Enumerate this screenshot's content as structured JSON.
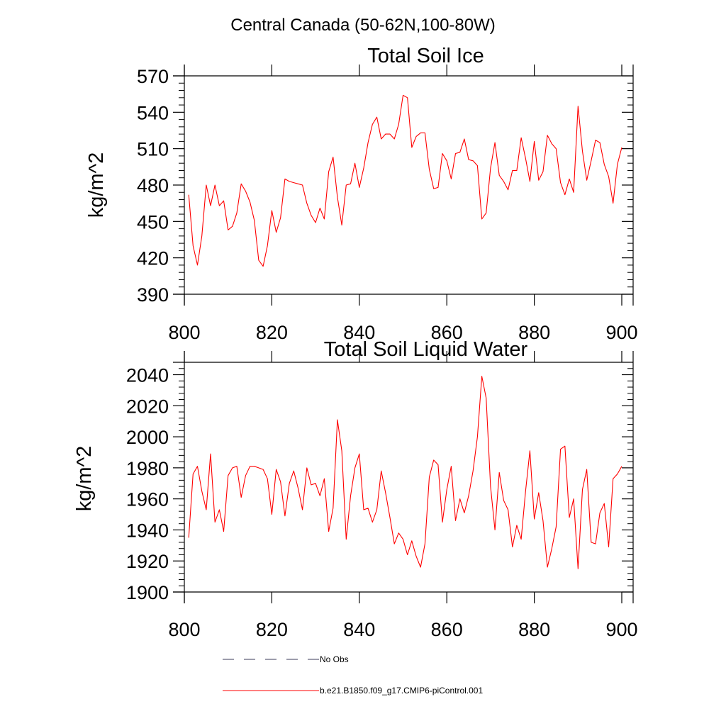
{
  "figure": {
    "title": "Central Canada (50-62N,100-80W)",
    "legend": [
      {
        "label": "No Obs",
        "color": "#3a3a5a",
        "dash": "dashed"
      },
      {
        "label": "b.e21.B1850.f09_g17.CMIP6-piControl.001",
        "color": "#ff0000",
        "dash": "solid"
      }
    ]
  },
  "chart_data": [
    {
      "type": "line",
      "title": "Total Soil Ice",
      "xlabel": "",
      "ylabel": "kg/m^2",
      "xlim": [
        800,
        900
      ],
      "ylim": [
        390,
        570
      ],
      "xticks": [
        800,
        820,
        840,
        860,
        880,
        900
      ],
      "yticks": [
        390,
        420,
        450,
        480,
        510,
        540,
        570
      ],
      "series": [
        {
          "name": "b.e21.B1850.f09_g17.CMIP6-piControl.001",
          "color": "#ff0000",
          "x": [
            801,
            802,
            803,
            804,
            805,
            806,
            807,
            808,
            809,
            810,
            811,
            812,
            813,
            814,
            815,
            816,
            817,
            818,
            819,
            820,
            821,
            822,
            823,
            824,
            825,
            826,
            827,
            828,
            829,
            830,
            831,
            832,
            833,
            834,
            835,
            836,
            837,
            838,
            839,
            840,
            841,
            842,
            843,
            844,
            845,
            846,
            847,
            848,
            849,
            850,
            851,
            852,
            853,
            854,
            855,
            856,
            857,
            858,
            859,
            860,
            861,
            862,
            863,
            864,
            865,
            866,
            867,
            868,
            869,
            870,
            871,
            872,
            873,
            874,
            875,
            876,
            877,
            878,
            879,
            880,
            881,
            882,
            883,
            884,
            885,
            886,
            887,
            888,
            889,
            890,
            891,
            892,
            893,
            894,
            895,
            896,
            897,
            898,
            899,
            900
          ],
          "y": [
            472,
            430,
            414,
            438,
            480,
            463,
            480,
            463,
            467,
            443,
            446,
            457,
            481,
            475,
            466,
            451,
            418,
            413,
            430,
            459,
            441,
            453,
            485,
            483,
            482,
            481,
            480,
            465,
            455,
            449,
            461,
            452,
            491,
            503,
            470,
            447,
            480,
            481,
            498,
            478,
            494,
            515,
            530,
            536,
            518,
            522,
            522,
            518,
            530,
            554,
            552,
            511,
            520,
            523,
            523,
            493,
            477,
            478,
            506,
            500,
            485,
            506,
            507,
            518,
            501,
            500,
            496,
            452,
            457,
            494,
            515,
            488,
            483,
            476,
            492,
            492,
            519,
            502,
            483,
            516,
            484,
            491,
            521,
            514,
            510,
            482,
            472,
            485,
            474,
            545,
            508,
            484,
            500,
            517,
            515,
            497,
            487,
            465,
            497,
            511
          ]
        }
      ]
    },
    {
      "type": "line",
      "title": "Total Soil Liquid Water",
      "xlabel": "",
      "ylabel": "kg/m^2",
      "xlim": [
        800,
        900
      ],
      "ylim": [
        1900,
        2048
      ],
      "xticks": [
        800,
        820,
        840,
        860,
        880,
        900
      ],
      "yticks": [
        1900,
        1920,
        1940,
        1960,
        1980,
        2000,
        2020,
        2040
      ],
      "series": [
        {
          "name": "b.e21.B1850.f09_g17.CMIP6-piControl.001",
          "color": "#ff0000",
          "x": [
            801,
            802,
            803,
            804,
            805,
            806,
            807,
            808,
            809,
            810,
            811,
            812,
            813,
            814,
            815,
            816,
            817,
            818,
            819,
            820,
            821,
            822,
            823,
            824,
            825,
            826,
            827,
            828,
            829,
            830,
            831,
            832,
            833,
            834,
            835,
            836,
            837,
            838,
            839,
            840,
            841,
            842,
            843,
            844,
            845,
            846,
            847,
            848,
            849,
            850,
            851,
            852,
            853,
            854,
            855,
            856,
            857,
            858,
            859,
            860,
            861,
            862,
            863,
            864,
            865,
            866,
            867,
            868,
            869,
            870,
            871,
            872,
            873,
            874,
            875,
            876,
            877,
            878,
            879,
            880,
            881,
            882,
            883,
            884,
            885,
            886,
            887,
            888,
            889,
            890,
            891,
            892,
            893,
            894,
            895,
            896,
            897,
            898,
            899,
            900
          ],
          "y": [
            1935,
            1976,
            1981,
            1965,
            1953,
            1989,
            1945,
            1953,
            1939,
            1975,
            1980,
            1981,
            1961,
            1975,
            1981,
            1981,
            1980,
            1979,
            1973,
            1950,
            1979,
            1971,
            1949,
            1970,
            1978,
            1967,
            1953,
            1980,
            1969,
            1970,
            1962,
            1973,
            1939,
            1954,
            2011,
            1991,
            1934,
            1962,
            1980,
            1989,
            1953,
            1954,
            1945,
            1953,
            1978,
            1964,
            1948,
            1931,
            1938,
            1934,
            1924,
            1933,
            1923,
            1916,
            1931,
            1974,
            1985,
            1982,
            1945,
            1966,
            1981,
            1946,
            1960,
            1951,
            1962,
            1978,
            2000,
            2039,
            2025,
            1968,
            1940,
            1977,
            1959,
            1953,
            1929,
            1943,
            1934,
            1965,
            1991,
            1947,
            1964,
            1946,
            1916,
            1928,
            1942,
            1992,
            1994,
            1948,
            1960,
            1915,
            1966,
            1979,
            1932,
            1931,
            1951,
            1957,
            1929,
            1973,
            1976,
            1981
          ]
        }
      ]
    }
  ]
}
